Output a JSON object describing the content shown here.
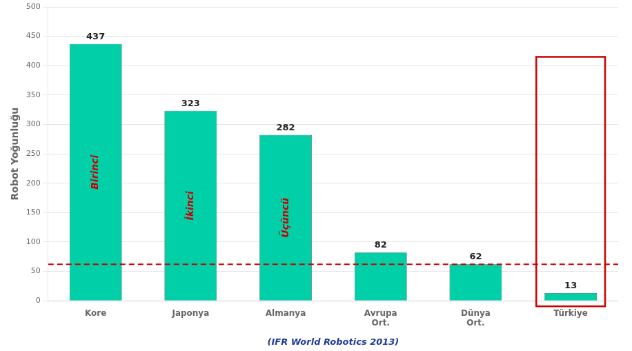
{
  "chart_data": {
    "type": "bar",
    "categories": [
      "Kore",
      "Japonya",
      "Almanya",
      "Avrupa\nOrt.",
      "Dünya\nOrt.",
      "Türkiye"
    ],
    "values": [
      437,
      323,
      282,
      82,
      62,
      13
    ],
    "color": "#00CFA8",
    "ylabel": "Robot Yoğunluğu",
    "ylim": [
      0,
      500
    ],
    "yticks": [
      0,
      50,
      100,
      150,
      200,
      250,
      300,
      350,
      400,
      450,
      500
    ],
    "grid": true,
    "data_labels": true,
    "annotations": [
      {
        "text": "Birinci",
        "category": "Kore",
        "color": "#CC0000"
      },
      {
        "text": "İkinci",
        "category": "Japonya",
        "color": "#CC0000"
      },
      {
        "text": "Üçüncü",
        "category": "Almanya",
        "color": "#CC0000"
      },
      {
        "text": "(IFR World Robotics 2013)",
        "color": "#1F3A9A"
      }
    ],
    "reference_line": {
      "y": 62,
      "color": "#CC0000",
      "line_style": "dashed"
    },
    "highlight": {
      "category": "Türkiye",
      "color": "#CC0000"
    }
  }
}
